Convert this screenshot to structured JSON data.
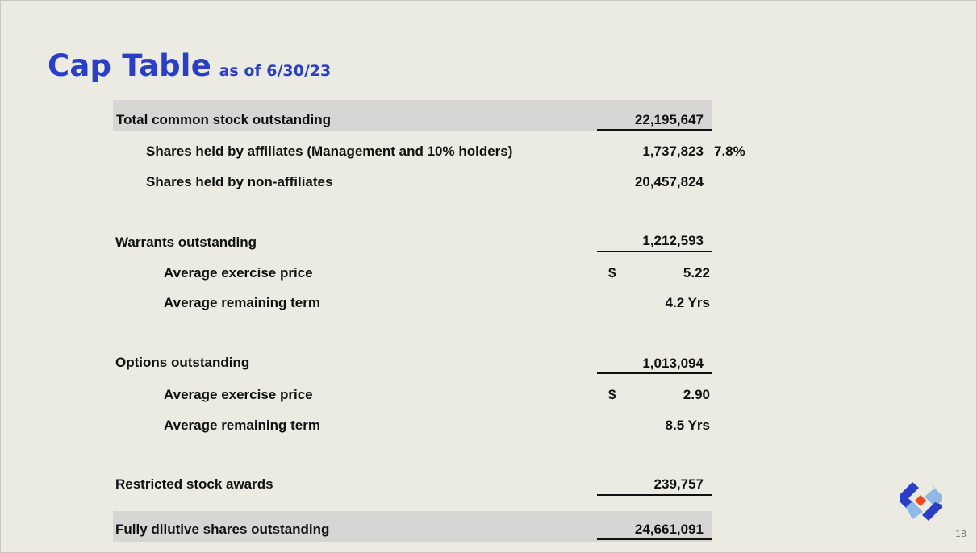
{
  "title": {
    "main": "Cap Table",
    "sub": "as of 6/30/23"
  },
  "rows": {
    "total_common": {
      "label": "Total common stock outstanding",
      "value": "22,195,647"
    },
    "affiliates": {
      "label": "Shares held by affiliates (Management and 10% holders)",
      "value": "1,737,823",
      "pct": "7.8%"
    },
    "non_affiliates": {
      "label": "Shares held by non-affiliates",
      "value": "20,457,824"
    },
    "warrants": {
      "label": "Warrants outstanding",
      "value": "1,212,593"
    },
    "warrants_price": {
      "label": "Average exercise price",
      "currency": "$",
      "value": "5.22"
    },
    "warrants_term": {
      "label": "Average remaining term",
      "value": "4.2 Yrs"
    },
    "options": {
      "label": "Options outstanding",
      "value": "1,013,094"
    },
    "options_price": {
      "label": "Average exercise price",
      "currency": "$",
      "value": "2.90"
    },
    "options_term": {
      "label": "Average remaining term",
      "value": "8.5 Yrs"
    },
    "rsa": {
      "label": "Restricted stock awards",
      "value": "239,757"
    },
    "fully_diluted": {
      "label": "Fully dilutive shares outstanding",
      "value": "24,661,091"
    }
  },
  "page_number": "18",
  "logo": {
    "icon": "company-logo-icon",
    "colors": {
      "blue": "#2a3fc4",
      "light_blue": "#8fb8e6",
      "orange": "#f04a1c"
    }
  }
}
